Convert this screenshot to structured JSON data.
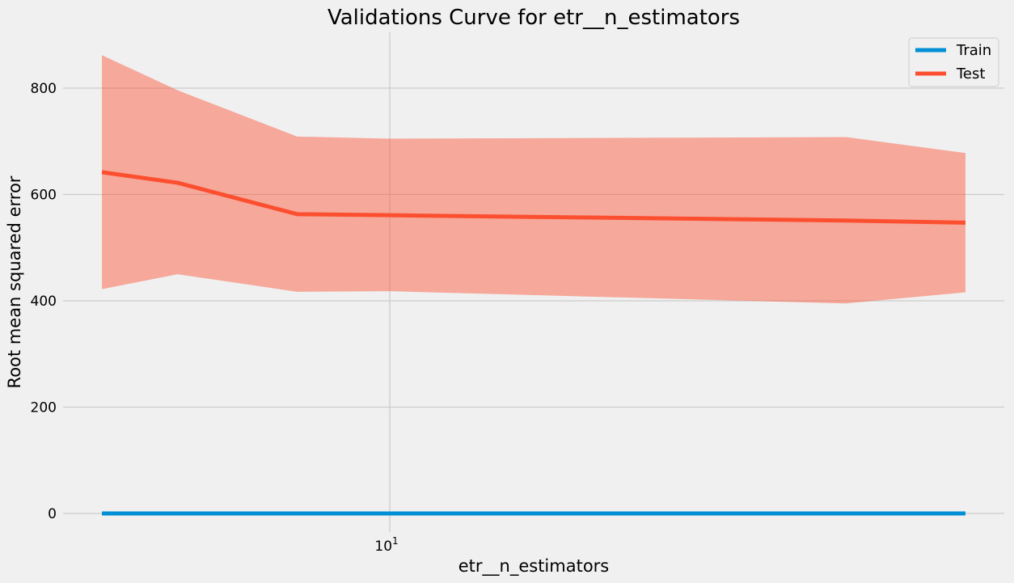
{
  "chart_data": {
    "type": "line",
    "title": "Validations Curve for etr__n_estimators",
    "xlabel": "etr__n_estimators",
    "ylabel": "Root mean squared error",
    "xscale": "log",
    "x": [
      5,
      6,
      8,
      10,
      30,
      40
    ],
    "xticks": [
      {
        "value": 10,
        "base": "10",
        "exp": "1"
      }
    ],
    "ylim": [
      -35,
      905
    ],
    "yticks": [
      0,
      200,
      400,
      600,
      800
    ],
    "grid": true,
    "legend_position": "top-right",
    "series": [
      {
        "name": "Train",
        "color": "#008fd5",
        "values": [
          0,
          0,
          0,
          0,
          0,
          0
        ]
      },
      {
        "name": "Test",
        "color": "#fc4f30",
        "values": [
          642,
          622,
          563,
          561,
          551,
          547
        ],
        "band_upper": [
          862,
          796,
          709,
          705,
          708,
          678
        ],
        "band_lower": [
          422,
          450,
          417,
          418,
          395,
          416
        ]
      }
    ]
  }
}
